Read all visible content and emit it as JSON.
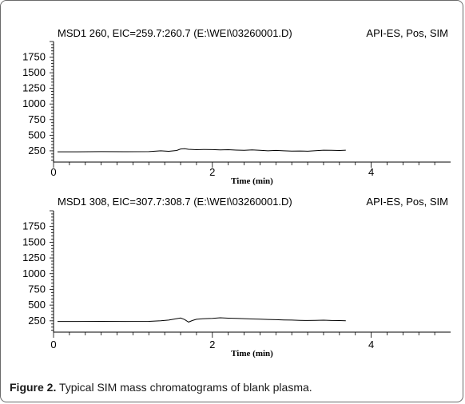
{
  "caption": {
    "label": "Figure 2.",
    "text": " Typical SIM mass chromatograms of blank plasma."
  },
  "chart_data": [
    {
      "type": "line",
      "title_left": "MSD1 260, EIC=259.7:260.7 (E:\\WEI\\03260001.D)",
      "title_right": "API-ES, Pos, SIM",
      "xlabel": "Time (min)",
      "ylabel": "",
      "xlim": [
        0,
        5.0
      ],
      "ylim": [
        70,
        2000
      ],
      "x_ticks": [
        0,
        2,
        4
      ],
      "y_ticks": [
        250,
        500,
        750,
        1000,
        1250,
        1500,
        1750
      ],
      "grid": false,
      "series": [
        {
          "x": [
            0.05,
            0.3,
            0.6,
            0.9,
            1.2,
            1.35,
            1.45,
            1.55,
            1.6,
            1.65,
            1.7,
            1.8,
            1.9,
            2.0,
            2.1,
            2.2,
            2.3,
            2.4,
            2.5,
            2.6,
            2.7,
            2.8,
            2.9,
            3.0,
            3.1,
            3.2,
            3.3,
            3.4,
            3.5,
            3.6,
            3.68
          ],
          "y": [
            235,
            235,
            237,
            236,
            238,
            250,
            242,
            255,
            280,
            285,
            275,
            268,
            272,
            270,
            265,
            268,
            262,
            258,
            265,
            258,
            250,
            256,
            250,
            246,
            248,
            244,
            252,
            260,
            258,
            255,
            260
          ]
        }
      ]
    },
    {
      "type": "line",
      "title_left": "MSD1 308, EIC=307.7:308.7 (E:\\WEI\\03260001.D)",
      "title_right": "API-ES, Pos, SIM",
      "xlabel": "Time (min)",
      "ylabel": "",
      "xlim": [
        0,
        5.0
      ],
      "ylim": [
        70,
        2000
      ],
      "x_ticks": [
        0,
        2,
        4
      ],
      "y_ticks": [
        250,
        500,
        750,
        1000,
        1250,
        1500,
        1750
      ],
      "grid": false,
      "series": [
        {
          "x": [
            0.05,
            0.3,
            0.6,
            0.9,
            1.2,
            1.35,
            1.45,
            1.55,
            1.6,
            1.65,
            1.7,
            1.75,
            1.8,
            1.9,
            2.0,
            2.1,
            2.2,
            2.3,
            2.4,
            2.5,
            2.6,
            2.7,
            2.8,
            2.9,
            3.0,
            3.1,
            3.2,
            3.3,
            3.4,
            3.5,
            3.6,
            3.68
          ],
          "y": [
            240,
            240,
            242,
            240,
            242,
            250,
            262,
            285,
            295,
            270,
            230,
            255,
            275,
            285,
            290,
            298,
            292,
            288,
            284,
            280,
            276,
            272,
            268,
            264,
            262,
            258,
            256,
            258,
            260,
            256,
            254,
            252
          ]
        }
      ]
    }
  ]
}
